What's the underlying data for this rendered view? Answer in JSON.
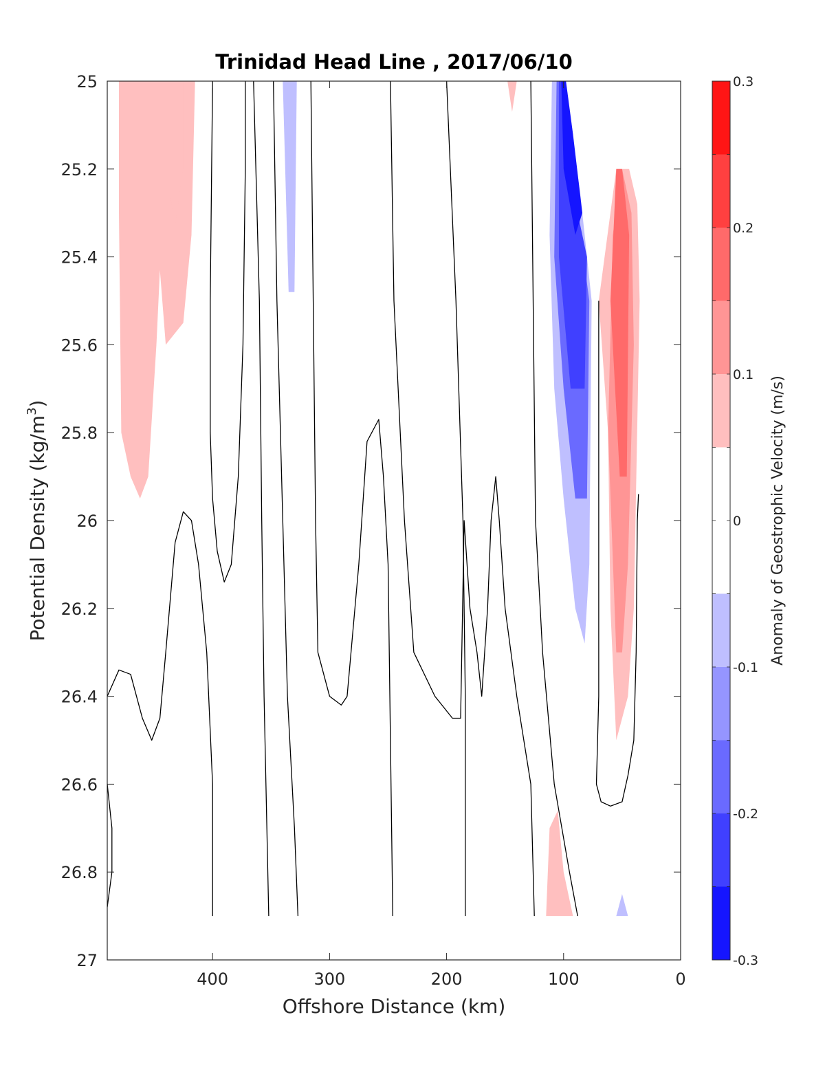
{
  "chart_data": {
    "type": "contour",
    "title": "Trinidad Head Line , 2017/06/10",
    "xlabel": "Offshore Distance (km)",
    "ylabel_main": "Potential Density (kg/m",
    "ylabel_sup": "3",
    "ylabel_close": ")",
    "xlim": [
      490,
      0
    ],
    "ylim": [
      25,
      27
    ],
    "x_ticks": [
      "400",
      "300",
      "200",
      "100",
      "0"
    ],
    "y_ticks": [
      "25",
      "25.2",
      "25.4",
      "25.6",
      "25.8",
      "26",
      "26.2",
      "26.4",
      "26.6",
      "26.8",
      "27"
    ],
    "colorbar": {
      "label": "Anomaly of Geostrophic Velocity (m/s)",
      "range": [
        -0.3,
        0.3
      ],
      "levels": 12,
      "ticks": [
        "0.3",
        "0.2",
        "0.1",
        "0",
        "-0.1",
        "-0.2",
        "-0.3"
      ],
      "colormap": [
        "#0000ff",
        "#ffffff",
        "#ff0000"
      ]
    },
    "anomaly_regions": [
      {
        "value": 0.05,
        "points": [
          [
            480,
            25
          ],
          [
            480,
            25.3
          ],
          [
            478,
            25.8
          ],
          [
            470,
            25.9
          ],
          [
            462,
            25.95
          ],
          [
            455,
            25.9
          ],
          [
            448,
            25.6
          ],
          [
            445,
            25.43
          ],
          [
            440,
            25.6
          ],
          [
            425,
            25.55
          ],
          [
            418,
            25.35
          ],
          [
            415,
            25.0
          ]
        ]
      },
      {
        "value": 0.075,
        "points": [
          [
            440,
            25
          ],
          [
            440,
            25.2
          ],
          [
            432,
            25.33
          ],
          [
            425,
            25.2
          ],
          [
            425,
            25.0
          ]
        ]
      },
      {
        "value": -0.04,
        "points": [
          [
            386,
            25
          ],
          [
            388,
            25.07
          ],
          [
            382,
            25.03
          ],
          [
            382,
            25
          ]
        ]
      },
      {
        "value": -0.04,
        "points": [
          [
            345,
            25
          ],
          [
            347,
            25.6
          ],
          [
            345,
            25.85
          ],
          [
            343,
            25.96
          ],
          [
            336,
            26.03
          ],
          [
            332,
            25.6
          ],
          [
            328,
            25.0
          ]
        ]
      },
      {
        "value": -0.06,
        "points": [
          [
            340,
            25
          ],
          [
            335,
            25.48
          ],
          [
            330,
            25.48
          ],
          [
            328,
            25.0
          ]
        ]
      },
      {
        "value": 0.04,
        "points": [
          [
            300,
            25
          ],
          [
            300,
            25.45
          ],
          [
            292,
            25.2
          ],
          [
            285,
            25.3
          ],
          [
            272,
            25.3
          ],
          [
            265,
            25.2
          ],
          [
            262,
            25.0
          ]
        ]
      },
      {
        "value": 0.04,
        "points": [
          [
            165,
            25
          ],
          [
            160,
            25.2
          ],
          [
            145,
            25.5
          ],
          [
            138,
            25.65
          ],
          [
            136,
            25.4
          ],
          [
            130,
            25.0
          ]
        ]
      },
      {
        "value": 0.075,
        "points": [
          [
            148,
            25
          ],
          [
            144,
            25.07
          ],
          [
            140,
            25.0
          ]
        ]
      },
      {
        "value": -0.04,
        "points": [
          [
            114,
            25
          ],
          [
            117,
            25.3
          ],
          [
            118,
            25.7
          ],
          [
            113,
            25.95
          ],
          [
            108,
            26.1
          ],
          [
            100,
            26.25
          ],
          [
            92,
            26.4
          ],
          [
            84,
            26.53
          ],
          [
            75,
            26.4
          ],
          [
            73,
            25.3
          ],
          [
            85,
            25.2
          ],
          [
            95,
            25.0
          ]
        ]
      },
      {
        "value": -0.1,
        "points": [
          [
            110,
            25
          ],
          [
            112,
            25.35
          ],
          [
            108,
            25.7
          ],
          [
            100,
            25.95
          ],
          [
            90,
            26.2
          ],
          [
            82,
            26.28
          ],
          [
            78,
            26.1
          ],
          [
            76,
            25.5
          ],
          [
            86,
            25.25
          ],
          [
            100,
            25.0
          ]
        ]
      },
      {
        "value": -0.16,
        "points": [
          [
            106,
            25
          ],
          [
            108,
            25.4
          ],
          [
            100,
            25.7
          ],
          [
            90,
            25.95
          ],
          [
            80,
            25.95
          ],
          [
            78,
            25.5
          ],
          [
            88,
            25.3
          ],
          [
            100,
            25.0
          ]
        ]
      },
      {
        "value": -0.22,
        "points": [
          [
            104,
            25
          ],
          [
            104,
            25.4
          ],
          [
            94,
            25.7
          ],
          [
            82,
            25.7
          ],
          [
            80,
            25.4
          ],
          [
            88,
            25.3
          ],
          [
            100,
            25.0
          ]
        ]
      },
      {
        "value": -0.27,
        "points": [
          [
            102,
            25
          ],
          [
            100,
            25.2
          ],
          [
            90,
            25.35
          ],
          [
            84,
            25.3
          ],
          [
            92,
            25.12
          ],
          [
            98,
            25.0
          ]
        ]
      },
      {
        "value": 0.05,
        "points": [
          [
            70,
            25.5
          ],
          [
            62,
            25.8
          ],
          [
            60,
            26.2
          ],
          [
            55,
            26.5
          ],
          [
            45,
            26.4
          ],
          [
            40,
            26.2
          ],
          [
            35,
            25.5
          ],
          [
            37,
            25.28
          ],
          [
            44,
            25.2
          ],
          [
            55,
            25.2
          ]
        ]
      },
      {
        "value": 0.1,
        "points": [
          [
            62,
            25.8
          ],
          [
            55,
            26.3
          ],
          [
            50,
            26.3
          ],
          [
            45,
            26.1
          ],
          [
            40,
            25.6
          ],
          [
            42,
            25.3
          ],
          [
            50,
            25.2
          ],
          [
            58,
            25.35
          ]
        ]
      },
      {
        "value": 0.15,
        "points": [
          [
            60,
            25.5
          ],
          [
            52,
            25.9
          ],
          [
            46,
            25.9
          ],
          [
            44,
            25.35
          ],
          [
            50,
            25.2
          ],
          [
            55,
            25.2
          ]
        ]
      },
      {
        "value": -0.04,
        "points": [
          [
            470,
            26.9
          ],
          [
            468,
            26.84
          ],
          [
            460,
            26.8
          ],
          [
            455,
            26.87
          ],
          [
            445,
            26.88
          ],
          [
            430,
            26.8
          ],
          [
            420,
            26.85
          ],
          [
            420,
            26.9
          ]
        ]
      },
      {
        "value": 0.04,
        "points": [
          [
            345,
            26.9
          ],
          [
            340,
            26.7
          ],
          [
            330,
            26.68
          ],
          [
            320,
            26.85
          ],
          [
            322,
            26.9
          ]
        ]
      },
      {
        "value": 0.04,
        "points": [
          [
            122,
            26.9
          ],
          [
            120,
            26.55
          ],
          [
            112,
            26.5
          ],
          [
            104,
            26.55
          ],
          [
            90,
            26.7
          ],
          [
            78,
            26.85
          ],
          [
            78,
            26.9
          ]
        ]
      },
      {
        "value": 0.08,
        "points": [
          [
            115,
            26.9
          ],
          [
            112,
            26.7
          ],
          [
            105,
            26.66
          ],
          [
            100,
            26.8
          ],
          [
            92,
            26.9
          ]
        ]
      },
      {
        "value": -0.04,
        "points": [
          [
            60,
            26.9
          ],
          [
            60,
            26.82
          ],
          [
            52,
            26.75
          ],
          [
            45,
            26.74
          ],
          [
            40,
            26.74
          ],
          [
            40,
            26.9
          ]
        ]
      },
      {
        "value": -0.08,
        "points": [
          [
            55,
            26.9
          ],
          [
            50,
            26.85
          ],
          [
            45,
            26.9
          ]
        ]
      }
    ],
    "contour_lines": [
      [
        [
          400,
          25
        ],
        [
          402,
          25.5
        ],
        [
          402,
          25.8
        ],
        [
          400,
          25.95
        ],
        [
          396,
          26.07
        ],
        [
          390,
          26.14
        ],
        [
          384,
          26.1
        ],
        [
          378,
          25.9
        ],
        [
          374,
          25.6
        ],
        [
          372,
          25.2
        ],
        [
          372,
          25
        ]
      ],
      [
        [
          365,
          25
        ],
        [
          360,
          25.5
        ],
        [
          358,
          26.0
        ],
        [
          356,
          26.4
        ],
        [
          352,
          26.9
        ]
      ],
      [
        [
          348,
          25
        ],
        [
          345,
          25.5
        ],
        [
          340,
          26.0
        ],
        [
          336,
          26.4
        ],
        [
          330,
          26.7
        ],
        [
          327,
          26.9
        ]
      ],
      [
        [
          316,
          25
        ],
        [
          314,
          25.5
        ],
        [
          312,
          26.0
        ],
        [
          310,
          26.3
        ],
        [
          305,
          26.35
        ],
        [
          300,
          26.4
        ],
        [
          290,
          26.42
        ],
        [
          285,
          26.4
        ],
        [
          275,
          26.1
        ],
        [
          268,
          25.82
        ],
        [
          258,
          25.77
        ],
        [
          254,
          25.9
        ],
        [
          250,
          26.1
        ],
        [
          248,
          26.5
        ],
        [
          246,
          26.9
        ]
      ],
      [
        [
          248,
          25
        ],
        [
          245,
          25.5
        ],
        [
          236,
          26.0
        ],
        [
          228,
          26.3
        ],
        [
          210,
          26.4
        ],
        [
          195,
          26.45
        ],
        [
          188,
          26.45
        ],
        [
          185,
          26.0
        ],
        [
          180,
          26.2
        ],
        [
          174,
          26.3
        ],
        [
          170,
          26.4
        ],
        [
          165,
          26.2
        ],
        [
          162,
          26.0
        ],
        [
          158,
          25.9
        ],
        [
          155,
          26.0
        ],
        [
          150,
          26.2
        ],
        [
          140,
          26.4
        ],
        [
          128,
          26.6
        ],
        [
          125,
          26.9
        ]
      ],
      [
        [
          200,
          25
        ],
        [
          192,
          25.5
        ],
        [
          186,
          26.0
        ],
        [
          184,
          26.4
        ],
        [
          184,
          26.9
        ]
      ],
      [
        [
          128,
          25
        ],
        [
          126,
          25.5
        ],
        [
          124,
          26.0
        ],
        [
          118,
          26.3
        ],
        [
          108,
          26.6
        ],
        [
          95,
          26.8
        ],
        [
          88,
          26.9
        ]
      ],
      [
        [
          490,
          26.4
        ],
        [
          480,
          26.34
        ],
        [
          470,
          26.35
        ],
        [
          460,
          26.45
        ],
        [
          452,
          26.5
        ],
        [
          445,
          26.45
        ],
        [
          440,
          26.3
        ],
        [
          432,
          26.05
        ],
        [
          425,
          25.98
        ],
        [
          418,
          26.0
        ],
        [
          412,
          26.1
        ],
        [
          405,
          26.3
        ],
        [
          400,
          26.6
        ],
        [
          400,
          26.9
        ]
      ],
      [
        [
          490,
          26.6
        ],
        [
          486,
          26.7
        ],
        [
          486,
          26.8
        ],
        [
          490,
          26.88
        ]
      ],
      [
        [
          70,
          25.5
        ],
        [
          70,
          26.0
        ],
        [
          70,
          26.4
        ],
        [
          72,
          26.6
        ],
        [
          68,
          26.64
        ],
        [
          60,
          26.65
        ],
        [
          50,
          26.64
        ],
        [
          45,
          26.58
        ],
        [
          40,
          26.5
        ],
        [
          38,
          26.3
        ],
        [
          37,
          26.0
        ],
        [
          36,
          25.94
        ]
      ]
    ]
  }
}
